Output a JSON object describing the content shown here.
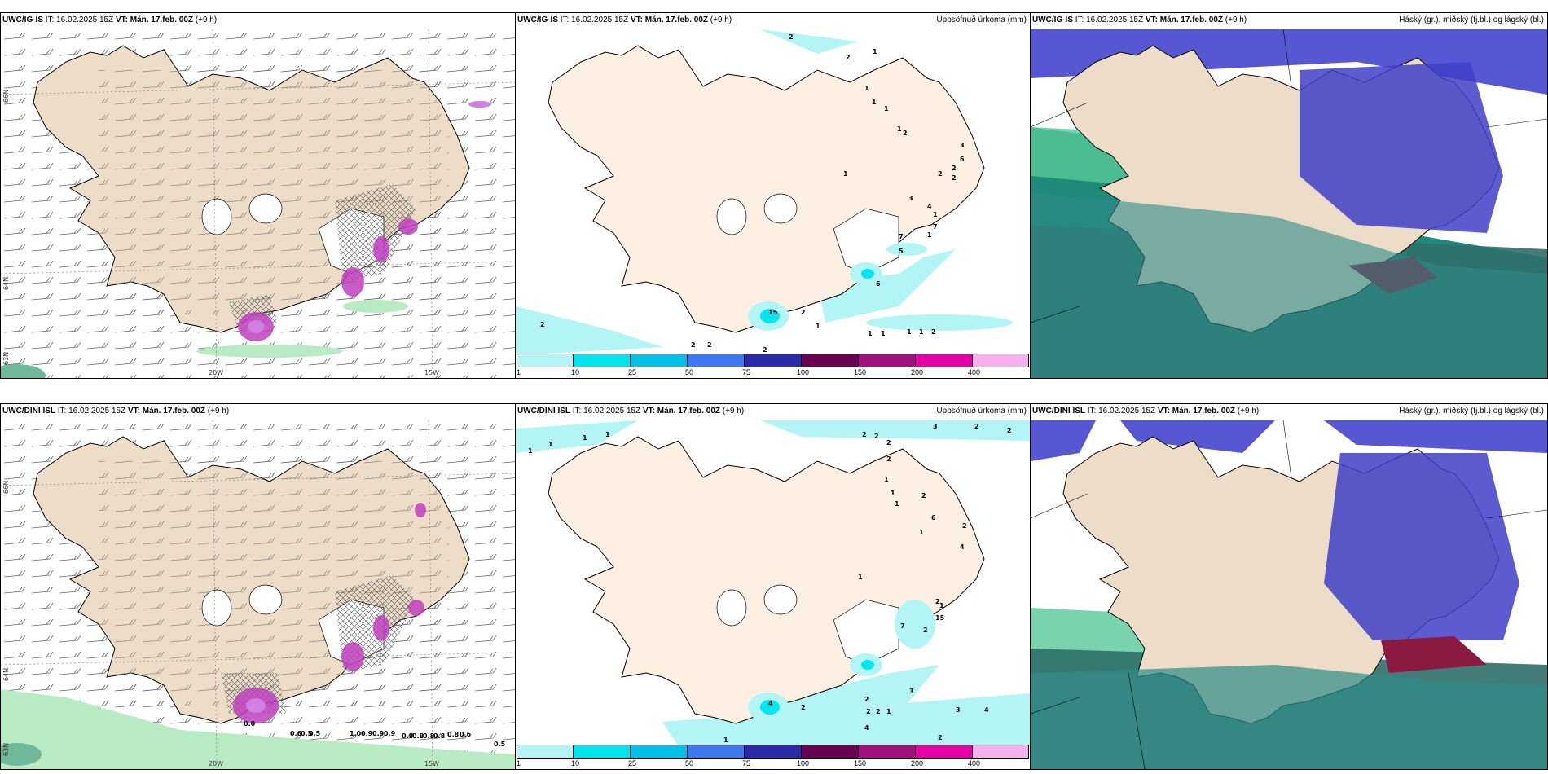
{
  "panels": [
    {
      "model": "UWC/IG-IS",
      "it": "IT: 16.02.2025 15Z",
      "vt": "VT: Mán. 17.feb. 00Z",
      "lead": "(+9 h)",
      "right": ""
    },
    {
      "model": "UWC/IG-IS",
      "it": "IT: 16.02.2025 15Z",
      "vt": "VT: Mán. 17.feb. 00Z",
      "lead": "(+9 h)",
      "right": "Uppsöfnuð úrkoma (mm)"
    },
    {
      "model": "UWC/IG-IS",
      "it": "IT: 16.02.2025 15Z",
      "vt": "VT: Mán. 17.feb. 00Z",
      "lead": "(+9 h)",
      "right": "Háský (gr.), miðský (fj.bl.) og lágský (bl.)"
    },
    {
      "model": "UWC/DINI ISL",
      "it": "IT: 16.02.2025 15Z",
      "vt": "VT: Mán. 17.feb. 00Z",
      "lead": "(+9 h)",
      "right": ""
    },
    {
      "model": "UWC/DINI ISL",
      "it": "IT: 16.02.2025 15Z",
      "vt": "VT: Mán. 17.feb. 00Z",
      "lead": "(+9 h)",
      "right": "Uppsöfnuð úrkoma (mm)"
    },
    {
      "model": "UWC/DINI ISL",
      "it": "IT: 16.02.2025 15Z",
      "vt": "VT: Mán. 17.feb. 00Z",
      "lead": "(+9 h)",
      "right": "Háský (gr.), miðský (fj.bl.) og lágský (bl.)"
    }
  ],
  "axis_labels": {
    "lat66": "66N",
    "lat64": "64N",
    "lat63": "63N",
    "lon20": "20W",
    "lon15": "15W"
  },
  "colorbar": {
    "labels": [
      "1",
      "10",
      "25",
      "50",
      "75",
      "100",
      "150",
      "200",
      "400"
    ],
    "colors": [
      "#b3f5f5",
      "#00e5ee",
      "#00c0e8",
      "#3c78f0",
      "#2a2aa8",
      "#6a0050",
      "#a0107e",
      "#e600a8",
      "#f5b0f0"
    ]
  },
  "precip_labels_top": [
    "2",
    "2",
    "1",
    "1",
    "1",
    "1",
    "1",
    "2",
    "3",
    "2",
    "2",
    "2",
    "6",
    "1",
    "3",
    "4",
    "7",
    "1",
    "1",
    "7",
    "5",
    "6",
    "15",
    "2",
    "2",
    "1",
    "1",
    "1",
    "1",
    "1",
    "2",
    "2",
    "2",
    "2"
  ],
  "precip_labels_bottom": [
    "1",
    "1",
    "1",
    "1",
    "2",
    "2",
    "3",
    "2",
    "2",
    "2",
    "2",
    "1",
    "1",
    "1",
    "6",
    "2",
    "2",
    "4",
    "1",
    "1",
    "2",
    "15",
    "1",
    "7",
    "2",
    "4",
    "2",
    "2",
    "2",
    "2",
    "1",
    "3",
    "3",
    "4",
    "4",
    "2",
    "1"
  ],
  "temp_labels_bottom": [
    "0.0",
    "0.6",
    "0.5",
    "0.5",
    "1.0",
    "0.9",
    "0.9",
    "0.9",
    "0.8",
    "0.8",
    "0.8",
    "0.8",
    "0.8",
    "0.6",
    "0.5"
  ]
}
